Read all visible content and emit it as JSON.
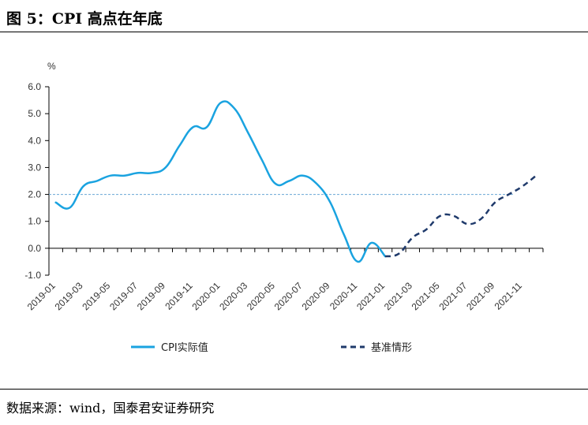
{
  "title": "图 5：CPI 高点在年底",
  "source": "数据来源：wind，国泰君安证券研究",
  "colors": {
    "actual": "#1aa3e0",
    "baseline": "#1f3a6b",
    "reference": "#6aa7d6",
    "axis": "#000000"
  },
  "chart_data": {
    "type": "line",
    "ylabel": "%",
    "ylim": [
      -1.0,
      6.0
    ],
    "yticks": [
      "6.0",
      "5.0",
      "4.0",
      "3.0",
      "2.0",
      "1.0",
      "0.0",
      "-1.0"
    ],
    "x_categories": [
      "2019-01",
      "2019-02",
      "2019-03",
      "2019-04",
      "2019-05",
      "2019-06",
      "2019-07",
      "2019-08",
      "2019-09",
      "2019-10",
      "2019-11",
      "2019-12",
      "2020-01",
      "2020-02",
      "2020-03",
      "2020-04",
      "2020-05",
      "2020-06",
      "2020-07",
      "2020-08",
      "2020-09",
      "2020-10",
      "2020-11",
      "2020-12",
      "2021-01",
      "2021-02",
      "2021-03",
      "2021-04",
      "2021-05",
      "2021-06",
      "2021-07",
      "2021-08",
      "2021-09",
      "2021-10",
      "2021-11",
      "2021-12"
    ],
    "xtick_labels": [
      "2019-01",
      "2019-03",
      "2019-05",
      "2019-07",
      "2019-09",
      "2019-11",
      "2020-01",
      "2020-03",
      "2020-05",
      "2020-07",
      "2020-09",
      "2020-11",
      "2021-01",
      "2021-03",
      "2021-05",
      "2021-07",
      "2021-09",
      "2021-11"
    ],
    "reference_line": {
      "y": 2.0,
      "style": "dashed"
    },
    "legend_position": "bottom",
    "series": [
      {
        "name": "CPI实际值",
        "style": "solid",
        "x": [
          "2019-01",
          "2019-02",
          "2019-03",
          "2019-04",
          "2019-05",
          "2019-06",
          "2019-07",
          "2019-08",
          "2019-09",
          "2019-10",
          "2019-11",
          "2019-12",
          "2020-01",
          "2020-02",
          "2020-03",
          "2020-04",
          "2020-05",
          "2020-06",
          "2020-07",
          "2020-08",
          "2020-09",
          "2020-10",
          "2020-11",
          "2020-12",
          "2021-01"
        ],
        "values": [
          1.7,
          1.5,
          2.3,
          2.5,
          2.7,
          2.7,
          2.8,
          2.8,
          3.0,
          3.8,
          4.5,
          4.5,
          5.4,
          5.2,
          4.3,
          3.3,
          2.4,
          2.5,
          2.7,
          2.4,
          1.7,
          0.5,
          -0.5,
          0.2,
          -0.3
        ]
      },
      {
        "name": "基准情形",
        "style": "dashed",
        "x": [
          "2021-01",
          "2021-02",
          "2021-03",
          "2021-04",
          "2021-05",
          "2021-06",
          "2021-07",
          "2021-08",
          "2021-09",
          "2021-10",
          "2021-11",
          "2021-12"
        ],
        "values": [
          -0.3,
          -0.2,
          0.4,
          0.7,
          1.2,
          1.2,
          0.9,
          1.1,
          1.7,
          2.0,
          2.3,
          2.7
        ]
      }
    ]
  }
}
